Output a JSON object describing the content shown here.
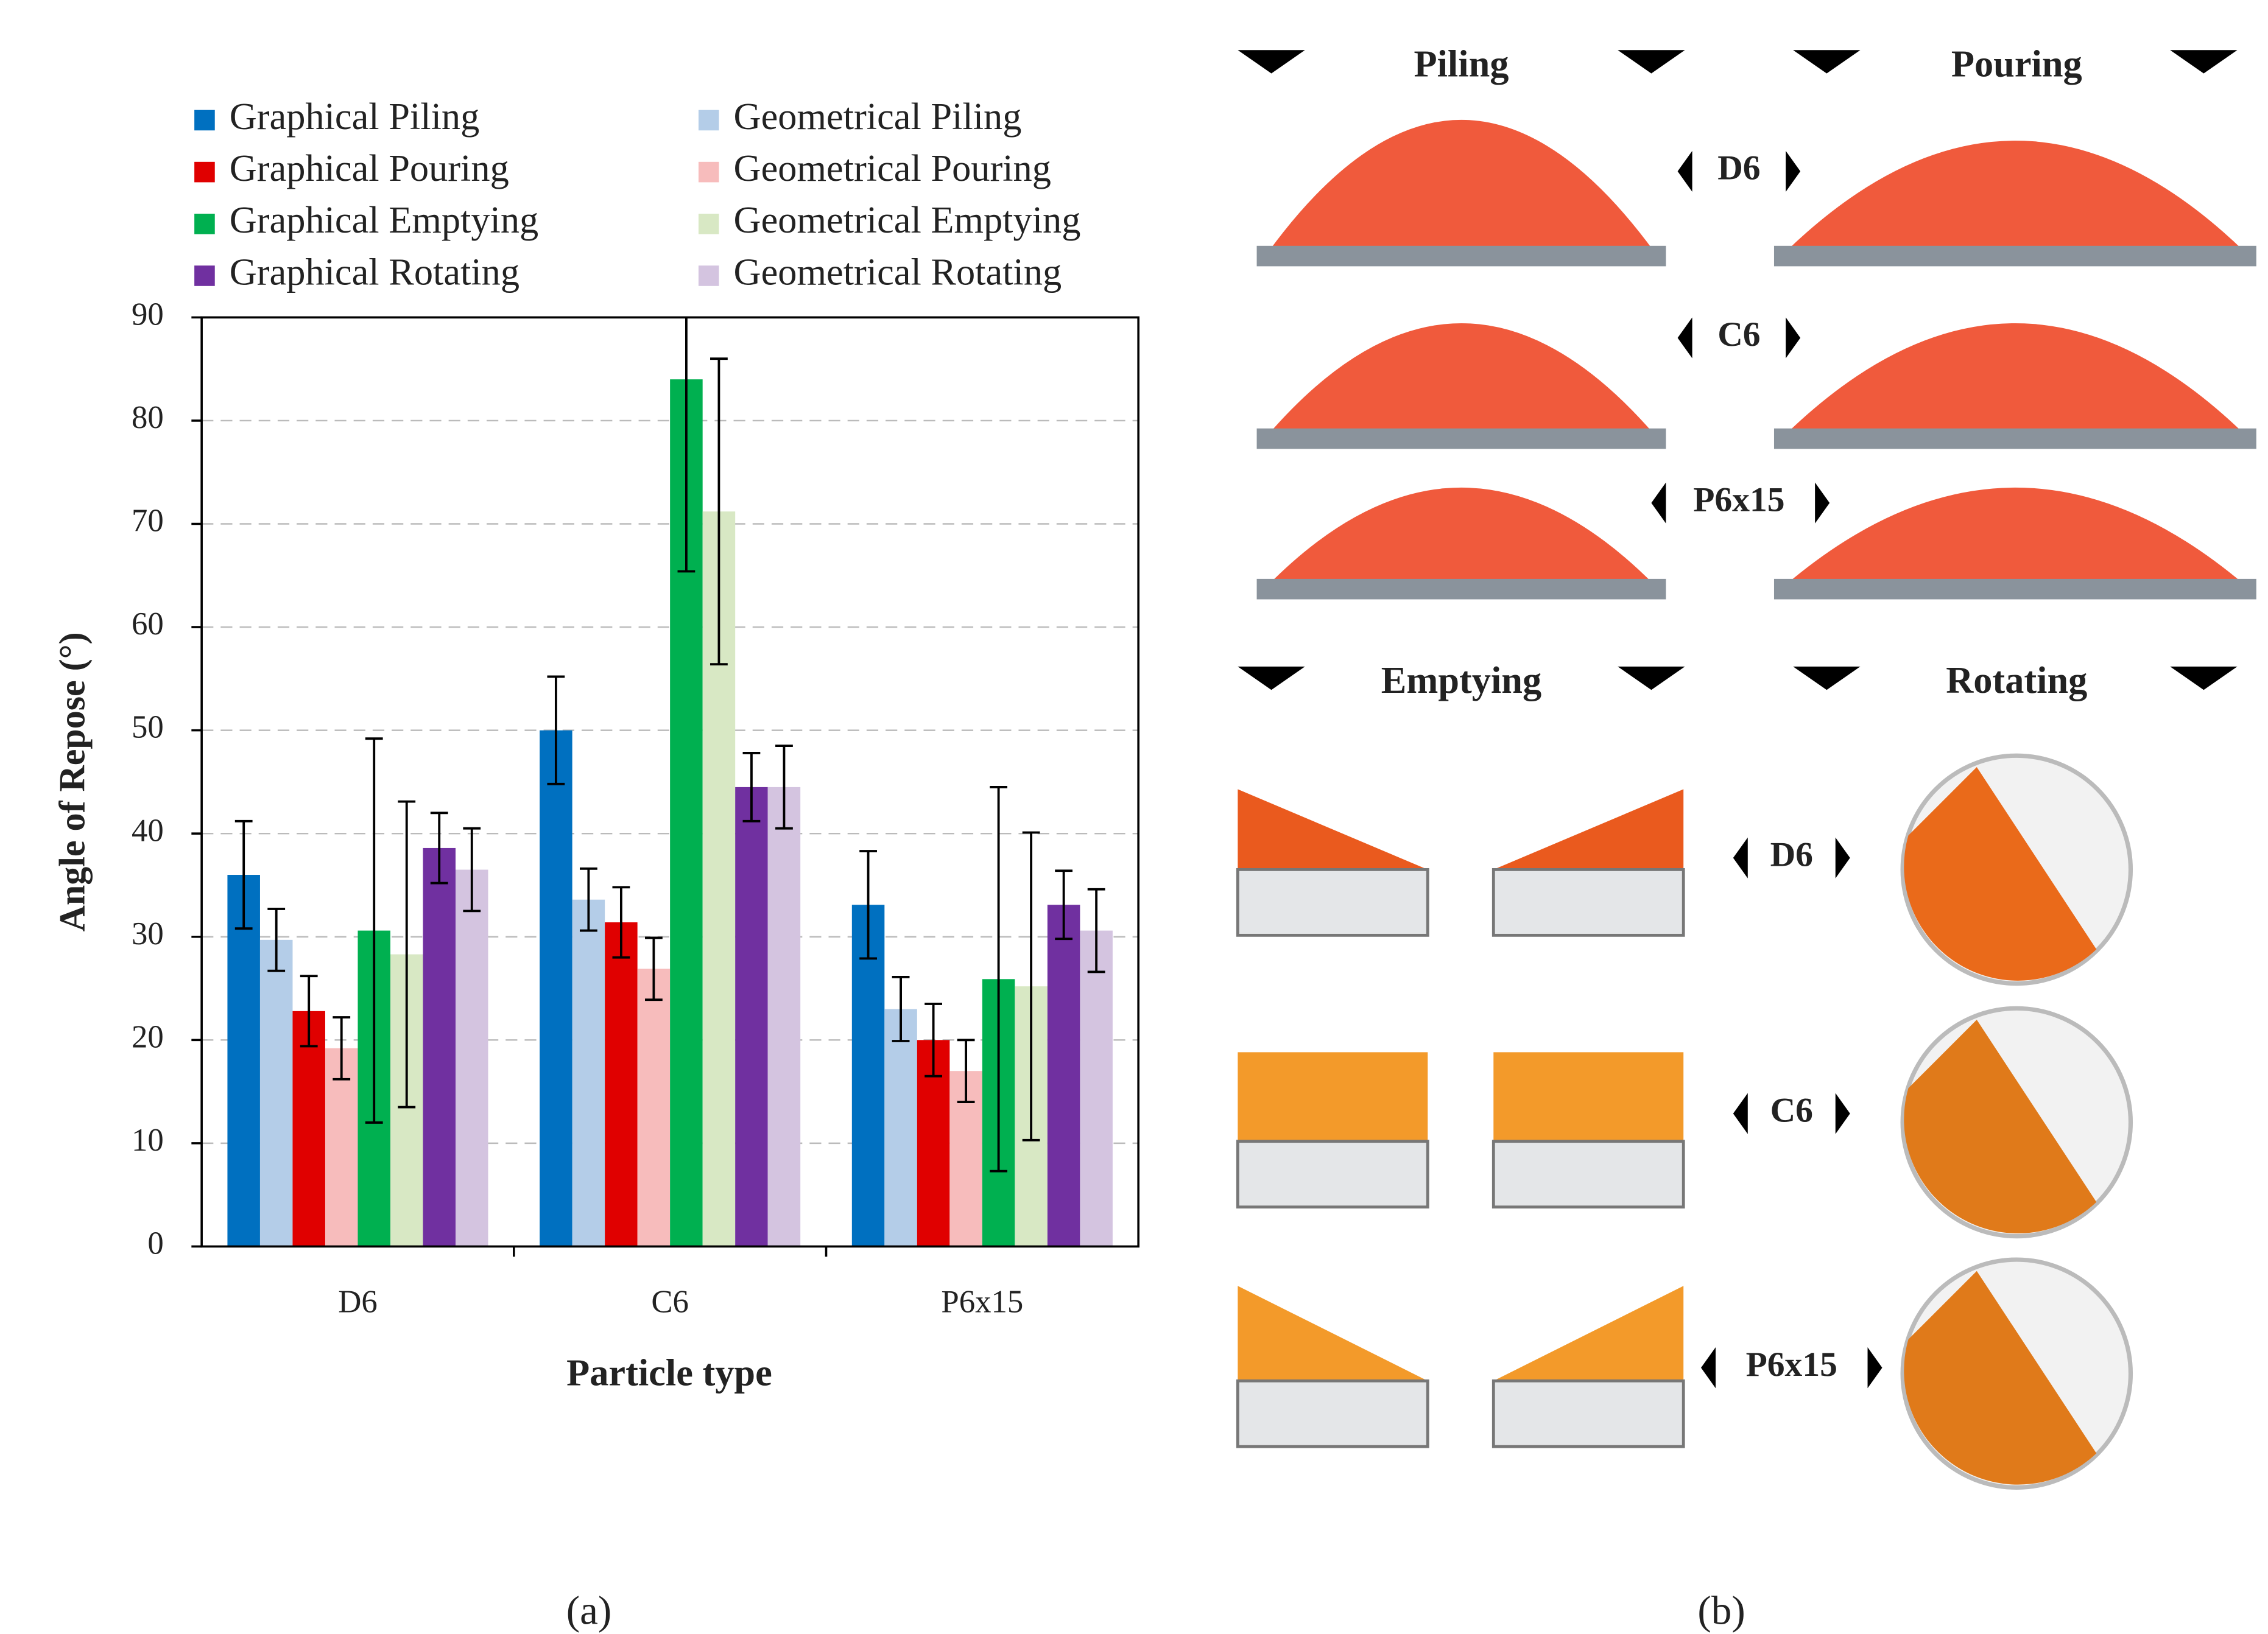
{
  "chart_data": {
    "type": "bar",
    "x_label": "Particle type",
    "y_label": "Angle of Repose (°)",
    "categories": [
      "D6",
      "C6",
      "P6x15"
    ],
    "ylim": [
      0,
      90
    ],
    "yticks": [
      0,
      10,
      20,
      30,
      40,
      50,
      60,
      70,
      80,
      90
    ],
    "grid": true,
    "series": [
      {
        "name": "Graphical Piling",
        "color": "#0070c0",
        "values": [
          36,
          50,
          33.1
        ],
        "errors": [
          5.2,
          5.2,
          5.2
        ]
      },
      {
        "name": "Geometrical Piling",
        "color": "#b4cde8",
        "values": [
          29.7,
          33.6,
          23
        ],
        "errors": [
          3,
          3,
          3.1
        ]
      },
      {
        "name": "Graphical Pouring",
        "color": "#e00000",
        "values": [
          22.8,
          31.4,
          20
        ],
        "errors": [
          3.4,
          3.4,
          3.5
        ]
      },
      {
        "name": "Geometrical Pouring",
        "color": "#f7bcbc",
        "values": [
          19.2,
          26.9,
          17
        ],
        "errors": [
          3,
          3,
          3
        ]
      },
      {
        "name": "Graphical Emptying",
        "color": "#00b050",
        "values": [
          30.6,
          84,
          25.9
        ],
        "errors": [
          18.6,
          18.6,
          18.6
        ]
      },
      {
        "name": "Geometrical Emptying",
        "color": "#d8e8c4",
        "values": [
          28.3,
          71.2,
          25.2
        ],
        "errors": [
          14.8,
          14.8,
          14.9
        ]
      },
      {
        "name": "Graphical Rotating",
        "color": "#7030a0",
        "values": [
          38.6,
          44.5,
          33.1
        ],
        "errors": [
          3.4,
          3.3,
          3.3
        ]
      },
      {
        "name": "Geometrical Rotating",
        "color": "#d4c4e0",
        "values": [
          36.5,
          44.5,
          30.6
        ],
        "errors": [
          4,
          4,
          4
        ]
      }
    ]
  },
  "photo_panel": {
    "top_headers": [
      "Piling",
      "Pouring"
    ],
    "bottom_headers": [
      "Emptying",
      "Rotating"
    ],
    "top_particles": [
      "D6",
      "C6",
      "P6x15"
    ],
    "bottom_particles": [
      "D6",
      "C6",
      "P6x15"
    ]
  },
  "captions": [
    "(a)",
    "(b)"
  ]
}
